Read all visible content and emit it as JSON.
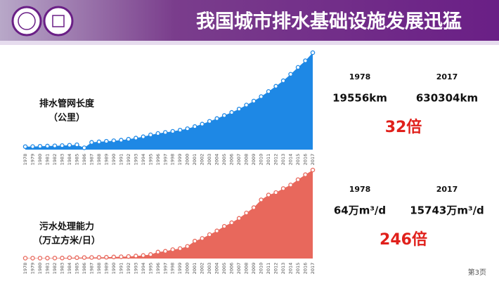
{
  "header": {
    "title": "我国城市排水基础设施发展迅猛"
  },
  "chart_data": [
    {
      "type": "area",
      "label_lines": [
        "排水管网长度",
        "（公里）"
      ],
      "color": "#1e88e5",
      "categories": [
        "1978",
        "1979",
        "1980",
        "1981",
        "1982",
        "1983",
        "1984",
        "1985",
        "1986",
        "1987",
        "1988",
        "1989",
        "1990",
        "1991",
        "1992",
        "1993",
        "1994",
        "1995",
        "1996",
        "1997",
        "1998",
        "1999",
        "2000",
        "2001",
        "2002",
        "2003",
        "2004",
        "2005",
        "2006",
        "2007",
        "2008",
        "2009",
        "2010",
        "2011",
        "2012",
        "2013",
        "2014",
        "2015",
        "2016",
        "2017"
      ],
      "values": [
        19556,
        20000,
        21860,
        23183,
        24638,
        26448,
        28775,
        31556,
        12000,
        47107,
        50678,
        54510,
        57787,
        61601,
        67672,
        75207,
        83647,
        96000,
        105000,
        112000,
        119000,
        127000,
        136000,
        150000,
        166000,
        184000,
        202000,
        222000,
        242000,
        264000,
        290000,
        316000,
        345000,
        378000,
        412000,
        448000,
        490000,
        535000,
        578000,
        630304
      ]
    },
    {
      "type": "area",
      "label_lines": [
        "污水处理能力",
        "（万立方米/日）"
      ],
      "color": "#e8685c",
      "categories": [
        "1978",
        "1979",
        "1980",
        "1981",
        "1982",
        "1983",
        "1984",
        "1985",
        "1986",
        "1987",
        "1988",
        "1989",
        "1990",
        "1991",
        "1992",
        "1993",
        "1994",
        "1995",
        "1996",
        "1997",
        "1998",
        "1999",
        "2000",
        "2001",
        "2002",
        "2003",
        "2004",
        "2005",
        "2006",
        "2007",
        "2008",
        "2009",
        "2010",
        "2011",
        "2012",
        "2013",
        "2014",
        "2015",
        "2016",
        "2017"
      ],
      "values": [
        64,
        66,
        70,
        75,
        80,
        90,
        146,
        154,
        177,
        186,
        197,
        230,
        277,
        317,
        366,
        449,
        540,
        714,
        1153,
        1292,
        1583,
        1767,
        2158,
        3106,
        3578,
        4254,
        4912,
        5725,
        6366,
        7146,
        8106,
        9052,
        10436,
        11303,
        11733,
        12454,
        13087,
        14028,
        14910,
        15743
      ]
    }
  ],
  "panels": [
    {
      "years": [
        "1978",
        "2017"
      ],
      "amounts": [
        "19556km",
        "630304km"
      ],
      "ratio": "32倍"
    },
    {
      "years": [
        "1978",
        "2017"
      ],
      "amounts": [
        "64万m³/d",
        "15743万m³/d"
      ],
      "ratio": "246倍"
    }
  ],
  "footer": {
    "page": "第3页"
  }
}
